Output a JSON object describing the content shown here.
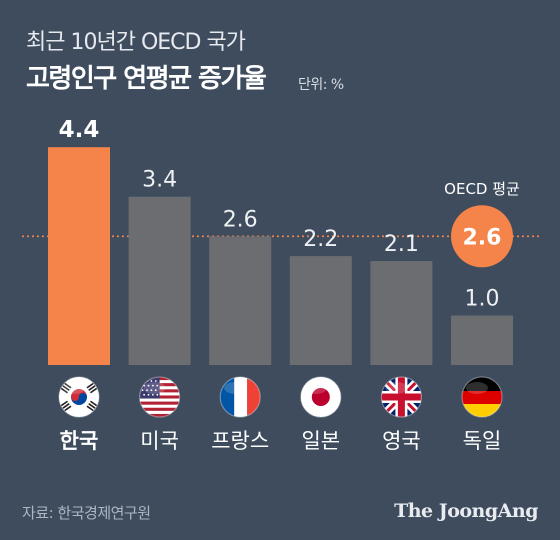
{
  "header": {
    "subtitle": "최근 10년간 OECD 국가",
    "title": "고령인구 연평균 증가율",
    "unit": "단위: %"
  },
  "footer": {
    "source": "자료: 한국경제연구원",
    "brand": "The JoongAng"
  },
  "colors": {
    "background": "#3e4c5e",
    "highlight": "#f5844a",
    "bar": "#6b6d70",
    "reference": "#f5844a"
  },
  "chart_data": {
    "type": "bar",
    "categories": [
      "한국",
      "미국",
      "프랑스",
      "일본",
      "영국",
      "독일"
    ],
    "values": [
      4.4,
      3.4,
      2.6,
      2.2,
      2.1,
      1.0
    ],
    "value_labels": [
      "4.4",
      "3.4",
      "2.6",
      "2.2",
      "2.1",
      "1.0"
    ],
    "highlight_index": 0,
    "flags": [
      "korea-flag",
      "usa-flag",
      "france-flag",
      "japan-flag",
      "uk-flag",
      "germany-flag"
    ],
    "reference_line": {
      "label": "OECD 평균",
      "value": 2.6,
      "value_label": "2.6"
    },
    "ylim": [
      0,
      5
    ],
    "grid": false,
    "legend": "none"
  }
}
